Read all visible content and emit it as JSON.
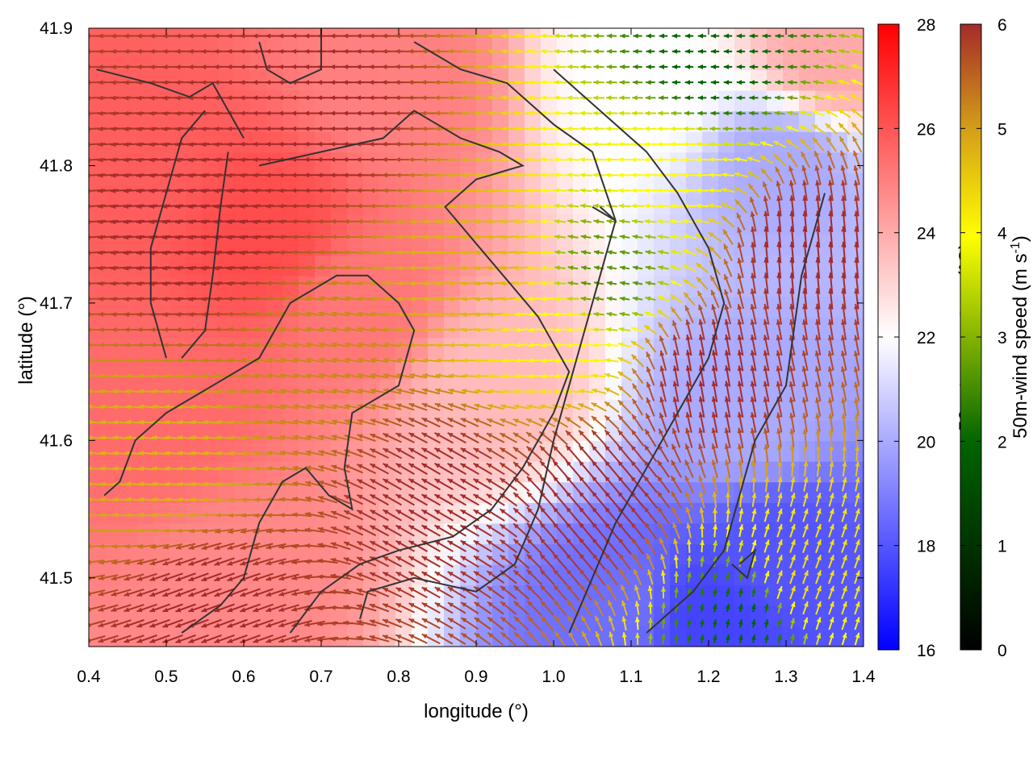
{
  "chart_data": {
    "type": "heatmap",
    "title": "",
    "xlabel": "longitude (°)",
    "ylabel": "latitude (°)",
    "xlim": [
      0.4,
      1.4
    ],
    "ylim": [
      41.45,
      41.9
    ],
    "xticks": [
      "0.4",
      "0.5",
      "0.6",
      "0.7",
      "0.8",
      "0.9",
      "1.0",
      "1.1",
      "1.2",
      "1.3",
      "1.4"
    ],
    "yticks": [
      "41.5",
      "41.6",
      "41.7",
      "41.8",
      "41.9"
    ],
    "temperature_colorbar": {
      "label": "50m-temperature (°C)",
      "range": [
        16,
        28
      ],
      "ticks": [
        "16",
        "18",
        "20",
        "22",
        "24",
        "26",
        "28"
      ],
      "colors": [
        "#0000ff",
        "#ffffff",
        "#ff0000"
      ]
    },
    "wind_colorbar": {
      "label_main": "50m-wind speed (m s",
      "label_sup": "-1",
      "label_end": ")",
      "range": [
        0,
        6
      ],
      "ticks": [
        "0",
        "1",
        "2",
        "3",
        "4",
        "5",
        "6"
      ],
      "colors": [
        "#000000",
        "#006400",
        "#ffff00",
        "#d4a017",
        "#a52a2a"
      ]
    },
    "temperature_field": {
      "background_c": 23.5,
      "features": [
        {
          "lon": 0.45,
          "lat": 41.8,
          "t": 25.8
        },
        {
          "lon": 0.63,
          "lat": 41.75,
          "t": 26.2
        },
        {
          "lon": 0.5,
          "lat": 41.62,
          "t": 25.5
        },
        {
          "lon": 0.75,
          "lat": 41.7,
          "t": 25.2
        },
        {
          "lon": 0.6,
          "lat": 41.5,
          "t": 24.8
        },
        {
          "lon": 0.8,
          "lat": 41.86,
          "t": 25.0
        },
        {
          "lon": 0.92,
          "lat": 41.64,
          "t": 23.6
        },
        {
          "lon": 1.12,
          "lat": 41.86,
          "t": 22.0
        },
        {
          "lon": 1.3,
          "lat": 41.8,
          "t": 20.0
        },
        {
          "lon": 1.36,
          "lat": 41.88,
          "t": 24.0
        },
        {
          "lon": 1.25,
          "lat": 41.62,
          "t": 20.0
        },
        {
          "lon": 1.3,
          "lat": 41.52,
          "t": 18.0
        },
        {
          "lon": 1.08,
          "lat": 41.48,
          "t": 18.6
        },
        {
          "lon": 1.2,
          "lat": 41.47,
          "t": 17.6
        }
      ]
    },
    "wind_field": {
      "zones": [
        {
          "lon": 0.55,
          "lat": 41.75,
          "speed": 6.0,
          "dir_deg": 185
        },
        {
          "lon": 0.7,
          "lat": 41.83,
          "speed": 6.0,
          "dir_deg": 180
        },
        {
          "lon": 0.5,
          "lat": 41.58,
          "speed": 4.2,
          "dir_deg": 175
        },
        {
          "lon": 0.7,
          "lat": 41.66,
          "speed": 4.8,
          "dir_deg": 170
        },
        {
          "lon": 0.9,
          "lat": 41.72,
          "speed": 4.2,
          "dir_deg": 185
        },
        {
          "lon": 1.0,
          "lat": 41.68,
          "speed": 3.0,
          "dir_deg": 185
        },
        {
          "lon": 1.07,
          "lat": 41.72,
          "speed": 2.0,
          "dir_deg": 170
        },
        {
          "lon": 1.15,
          "lat": 41.8,
          "speed": 3.0,
          "dir_deg": 180
        },
        {
          "lon": 1.2,
          "lat": 41.87,
          "speed": 1.5,
          "dir_deg": 180
        },
        {
          "lon": 0.85,
          "lat": 41.56,
          "speed": 6.0,
          "dir_deg": 150
        },
        {
          "lon": 1.05,
          "lat": 41.56,
          "speed": 6.0,
          "dir_deg": 130
        },
        {
          "lon": 1.2,
          "lat": 41.65,
          "speed": 6.0,
          "dir_deg": 100
        },
        {
          "lon": 1.32,
          "lat": 41.74,
          "speed": 6.0,
          "dir_deg": 95
        },
        {
          "lon": 1.25,
          "lat": 41.47,
          "speed": 1.5,
          "dir_deg": 80
        },
        {
          "lon": 1.32,
          "lat": 41.5,
          "speed": 3.5,
          "dir_deg": 70
        },
        {
          "lon": 0.55,
          "lat": 41.48,
          "speed": 6.0,
          "dir_deg": 200
        }
      ]
    },
    "contours": [
      {
        "points": [
          [
            0.41,
            41.87
          ],
          [
            0.48,
            41.86
          ],
          [
            0.53,
            41.85
          ],
          [
            0.56,
            41.86
          ],
          [
            0.58,
            41.84
          ],
          [
            0.6,
            41.82
          ]
        ]
      },
      {
        "points": [
          [
            0.55,
            41.84
          ],
          [
            0.52,
            41.82
          ],
          [
            0.5,
            41.78
          ],
          [
            0.48,
            41.74
          ],
          [
            0.48,
            41.7
          ],
          [
            0.5,
            41.66
          ]
        ]
      },
      {
        "points": [
          [
            0.58,
            41.81
          ],
          [
            0.57,
            41.77
          ],
          [
            0.56,
            41.72
          ],
          [
            0.55,
            41.68
          ],
          [
            0.52,
            41.66
          ]
        ]
      },
      {
        "points": [
          [
            0.62,
            41.89
          ],
          [
            0.63,
            41.87
          ],
          [
            0.66,
            41.86
          ],
          [
            0.7,
            41.87
          ],
          [
            0.7,
            41.9
          ]
        ]
      },
      {
        "points": [
          [
            0.42,
            41.56
          ],
          [
            0.44,
            41.57
          ],
          [
            0.46,
            41.6
          ],
          [
            0.5,
            41.62
          ],
          [
            0.56,
            41.64
          ],
          [
            0.62,
            41.66
          ],
          [
            0.66,
            41.7
          ],
          [
            0.72,
            41.72
          ],
          [
            0.76,
            41.72
          ],
          [
            0.8,
            41.7
          ],
          [
            0.82,
            41.68
          ],
          [
            0.8,
            41.64
          ],
          [
            0.74,
            41.62
          ],
          [
            0.73,
            41.58
          ],
          [
            0.74,
            41.55
          ],
          [
            0.71,
            41.56
          ],
          [
            0.68,
            41.58
          ],
          [
            0.65,
            41.57
          ],
          [
            0.62,
            41.54
          ],
          [
            0.6,
            41.5
          ],
          [
            0.57,
            41.48
          ],
          [
            0.52,
            41.46
          ]
        ]
      },
      {
        "points": [
          [
            0.62,
            41.8
          ],
          [
            0.7,
            41.81
          ],
          [
            0.78,
            41.82
          ],
          [
            0.82,
            41.84
          ],
          [
            0.88,
            41.82
          ],
          [
            0.93,
            41.81
          ],
          [
            0.96,
            41.8
          ],
          [
            0.9,
            41.79
          ],
          [
            0.86,
            41.77
          ],
          [
            0.92,
            41.73
          ],
          [
            0.98,
            41.69
          ],
          [
            1.02,
            41.65
          ],
          [
            1.0,
            41.62
          ],
          [
            0.96,
            41.58
          ],
          [
            0.92,
            41.55
          ],
          [
            0.87,
            41.53
          ],
          [
            0.8,
            41.52
          ],
          [
            0.75,
            41.51
          ],
          [
            0.7,
            41.49
          ],
          [
            0.66,
            41.46
          ]
        ]
      },
      {
        "points": [
          [
            0.75,
            41.47
          ],
          [
            0.76,
            41.49
          ],
          [
            0.82,
            41.5
          ],
          [
            0.9,
            41.49
          ],
          [
            0.95,
            41.51
          ],
          [
            0.98,
            41.55
          ],
          [
            1.0,
            41.6
          ],
          [
            1.02,
            41.64
          ],
          [
            1.04,
            41.68
          ],
          [
            1.06,
            41.72
          ],
          [
            1.08,
            41.76
          ],
          [
            1.05,
            41.81
          ],
          [
            1.0,
            41.83
          ],
          [
            0.94,
            41.86
          ],
          [
            0.88,
            41.87
          ],
          [
            0.82,
            41.89
          ]
        ]
      },
      {
        "points": [
          [
            1.02,
            41.46
          ],
          [
            1.05,
            41.5
          ],
          [
            1.08,
            41.54
          ],
          [
            1.12,
            41.58
          ],
          [
            1.16,
            41.62
          ],
          [
            1.2,
            41.66
          ],
          [
            1.22,
            41.7
          ],
          [
            1.2,
            41.74
          ],
          [
            1.16,
            41.78
          ],
          [
            1.12,
            41.81
          ],
          [
            1.06,
            41.84
          ],
          [
            1.0,
            41.87
          ]
        ]
      },
      {
        "points": [
          [
            1.12,
            41.46
          ],
          [
            1.18,
            41.49
          ],
          [
            1.22,
            41.52
          ],
          [
            1.24,
            41.56
          ],
          [
            1.26,
            41.6
          ],
          [
            1.28,
            41.62
          ],
          [
            1.3,
            41.64
          ],
          [
            1.31,
            41.68
          ],
          [
            1.32,
            41.72
          ],
          [
            1.34,
            41.76
          ],
          [
            1.35,
            41.78
          ]
        ]
      },
      {
        "points": [
          [
            1.24,
            41.51
          ],
          [
            1.26,
            41.52
          ],
          [
            1.25,
            41.5
          ],
          [
            1.23,
            41.51
          ]
        ]
      },
      {
        "points": [
          [
            1.05,
            41.77
          ],
          [
            1.08,
            41.76
          ],
          [
            1.06,
            41.77
          ]
        ]
      }
    ]
  }
}
